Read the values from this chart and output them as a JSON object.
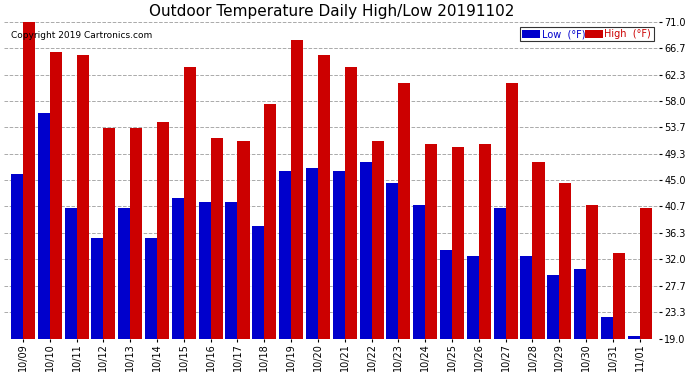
{
  "title": "Outdoor Temperature Daily High/Low 20191102",
  "copyright": "Copyright 2019 Cartronics.com",
  "legend_low": "Low  (°F)",
  "legend_high": "High  (°F)",
  "low_color": "#0000cc",
  "high_color": "#cc0000",
  "bg_color": "#ffffff",
  "plot_bg_color": "#ffffff",
  "grid_color": "#aaaaaa",
  "ylim": [
    19.0,
    71.0
  ],
  "yticks": [
    19.0,
    23.3,
    27.7,
    32.0,
    36.3,
    40.7,
    45.0,
    49.3,
    53.7,
    58.0,
    62.3,
    66.7,
    71.0
  ],
  "dates": [
    "10/09",
    "10/10",
    "10/11",
    "10/12",
    "10/13",
    "10/14",
    "10/15",
    "10/16",
    "10/17",
    "10/18",
    "10/19",
    "10/20",
    "10/21",
    "10/22",
    "10/23",
    "10/24",
    "10/25",
    "10/26",
    "10/27",
    "10/28",
    "10/29",
    "10/30",
    "10/31",
    "11/01"
  ],
  "highs": [
    71.0,
    66.0,
    65.5,
    53.5,
    53.5,
    54.5,
    63.5,
    52.0,
    51.5,
    57.5,
    68.0,
    65.5,
    63.5,
    51.5,
    61.0,
    51.0,
    50.5,
    51.0,
    61.0,
    48.0,
    44.5,
    41.0,
    33.0,
    40.5
  ],
  "lows": [
    46.0,
    56.0,
    40.5,
    35.5,
    40.5,
    35.5,
    42.0,
    41.5,
    41.5,
    37.5,
    46.5,
    47.0,
    46.5,
    48.0,
    44.5,
    41.0,
    33.5,
    32.5,
    40.5,
    32.5,
    29.5,
    30.5,
    22.5,
    19.5
  ],
  "title_fontsize": 11,
  "tick_fontsize": 7,
  "copyright_fontsize": 6.5,
  "bar_width": 0.45,
  "ybase": 19.0
}
